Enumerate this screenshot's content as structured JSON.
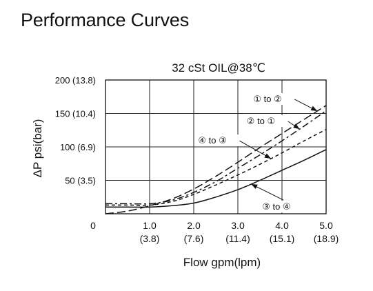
{
  "page": {
    "title": "Performance Curves"
  },
  "chart_data": {
    "type": "line",
    "subtitle": "32 cSt OIL@38℃",
    "xlabel": "Flow gpm(lpm)",
    "ylabel": "ΔP psi(bar)",
    "xlim": [
      0,
      5.0
    ],
    "ylim": [
      0,
      200
    ],
    "grid": true,
    "x_ticks": [
      {
        "value": 0,
        "label": "0",
        "sub": ""
      },
      {
        "value": 1.0,
        "label": "1.0",
        "sub": "(3.8)"
      },
      {
        "value": 2.0,
        "label": "2.0",
        "sub": "(7.6)"
      },
      {
        "value": 3.0,
        "label": "3.0",
        "sub": "(11.4)"
      },
      {
        "value": 4.0,
        "label": "4.0",
        "sub": "(15.1)"
      },
      {
        "value": 5.0,
        "label": "5.0",
        "sub": "(18.9)"
      }
    ],
    "y_ticks": [
      {
        "value": 50,
        "label": "50 (3.5)"
      },
      {
        "value": 100,
        "label": "100 (6.9)"
      },
      {
        "value": 150,
        "label": "150 (10.4)"
      },
      {
        "value": 200,
        "label": "200 (13.8)"
      }
    ],
    "series": [
      {
        "name": "① to ②",
        "dash": "long-dash",
        "x": [
          0,
          0.5,
          1.0,
          1.5,
          2.0,
          2.5,
          3.0,
          3.5,
          4.0,
          4.5,
          5.0
        ],
        "y": [
          0,
          4,
          12,
          22,
          37,
          56,
          77,
          99,
          120,
          141,
          162
        ]
      },
      {
        "name": "② to ①",
        "dash": "dash-dot",
        "x": [
          0,
          0.5,
          1.0,
          1.5,
          2.0,
          2.5,
          3.0,
          3.5,
          4.0,
          4.5,
          5.0
        ],
        "y": [
          15,
          15,
          15,
          20,
          32,
          48,
          68,
          88,
          109,
          131,
          154
        ]
      },
      {
        "name": "④ to ③",
        "dash": "short-dash",
        "x": [
          0,
          0.5,
          1.0,
          1.5,
          2.0,
          2.5,
          3.0,
          3.5,
          4.0,
          4.5,
          5.0
        ],
        "y": [
          13,
          13,
          13,
          18,
          29,
          43,
          58,
          74,
          91,
          109,
          126
        ]
      },
      {
        "name": "③ to ④",
        "dash": "solid",
        "x": [
          0,
          0.5,
          1.0,
          1.5,
          2.0,
          2.5,
          3.0,
          3.5,
          4.0,
          4.5,
          5.0
        ],
        "y": [
          10,
          10,
          10,
          12,
          16,
          25,
          36,
          50,
          65,
          80,
          96
        ]
      }
    ],
    "annotations": [
      {
        "text": "① to ②",
        "series": 0,
        "target_x": 4.8,
        "label_x": 3.35,
        "label_y": 167
      },
      {
        "text": "② to ①",
        "series": 1,
        "target_x": 4.4,
        "label_x": 3.2,
        "label_y": 134
      },
      {
        "text": "④ to ③",
        "series": 2,
        "target_x": 3.75,
        "label_x": 2.1,
        "label_y": 105
      },
      {
        "text": "③ to ④",
        "series": 3,
        "target_x": 3.3,
        "label_x": 3.55,
        "label_y": 6
      }
    ]
  }
}
